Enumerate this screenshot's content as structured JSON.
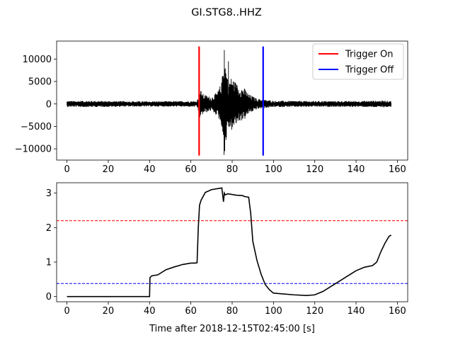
{
  "title": "GI.STG8..HHZ",
  "chart_data": [
    {
      "type": "line",
      "xlim": [
        -5,
        165
      ],
      "ylim": [
        -12500,
        14000
      ],
      "xticks": [
        0,
        20,
        40,
        60,
        80,
        100,
        120,
        140,
        160
      ],
      "yticks": [
        -10000,
        -5000,
        0,
        5000,
        10000
      ],
      "xtick_labels": [
        "0",
        "20",
        "40",
        "60",
        "80",
        "100",
        "120",
        "140",
        "160"
      ],
      "ytick_labels": [
        "−10000",
        "−5000",
        "0",
        "5000",
        "10000"
      ],
      "grid": false,
      "legend_position": "top-right",
      "waveform": {
        "color": "#000000",
        "envelope": [
          {
            "t": 0,
            "amp": 650
          },
          {
            "t": 10,
            "amp": 700
          },
          {
            "t": 20,
            "amp": 650
          },
          {
            "t": 30,
            "amp": 600
          },
          {
            "t": 40,
            "amp": 600
          },
          {
            "t": 50,
            "amp": 600
          },
          {
            "t": 63,
            "amp": 650
          },
          {
            "t": 64.5,
            "amp": 3300
          },
          {
            "t": 66,
            "amp": 2200
          },
          {
            "t": 70,
            "amp": 1500
          },
          {
            "t": 73,
            "amp": 2800
          },
          {
            "t": 75,
            "amp": 5000
          },
          {
            "t": 76,
            "amp": 11800
          },
          {
            "t": 77,
            "amp": 8500
          },
          {
            "t": 78,
            "amp": 5500
          },
          {
            "t": 80,
            "amp": 6000
          },
          {
            "t": 83,
            "amp": 4000
          },
          {
            "t": 86,
            "amp": 3500
          },
          {
            "t": 88,
            "amp": 2200
          },
          {
            "t": 92,
            "amp": 1200
          },
          {
            "t": 95,
            "amp": 1000
          },
          {
            "t": 100,
            "amp": 700
          },
          {
            "t": 120,
            "amp": 650
          },
          {
            "t": 140,
            "amp": 650
          },
          {
            "t": 153,
            "amp": 750
          },
          {
            "t": 157,
            "amp": 650
          }
        ],
        "extremes": [
          {
            "t": 76.2,
            "value": 12000
          },
          {
            "t": 76.4,
            "value": -10500
          },
          {
            "t": 77.0,
            "value": -8000
          },
          {
            "t": 78.2,
            "value": 9500
          }
        ]
      },
      "series": [
        {
          "name": "Trigger On",
          "color": "#ff0000",
          "x": [
            64,
            64
          ],
          "y": [
            -11500,
            12800
          ]
        },
        {
          "name": "Trigger Off",
          "color": "#0000ff",
          "x": [
            95,
            95
          ],
          "y": [
            -11500,
            12800
          ]
        }
      ]
    },
    {
      "type": "line",
      "xlim": [
        -5,
        165
      ],
      "ylim": [
        -0.15,
        3.3
      ],
      "xticks": [
        0,
        20,
        40,
        60,
        80,
        100,
        120,
        140,
        160
      ],
      "yticks": [
        0,
        1,
        2,
        3
      ],
      "xtick_labels": [
        "0",
        "20",
        "40",
        "60",
        "80",
        "100",
        "120",
        "140",
        "160"
      ],
      "ytick_labels": [
        "0",
        "1",
        "2",
        "3"
      ],
      "xlabel": "Time after 2018-12-15T02:45:00 [s]",
      "grid": false,
      "series": [
        {
          "color": "#000000",
          "x": [
            0,
            40,
            40.2,
            41,
            44,
            48,
            52,
            56,
            60,
            62,
            63,
            63.6,
            64.2,
            65,
            67,
            70,
            75,
            75.4,
            75.8,
            76.2,
            76.6,
            78,
            82,
            85,
            86,
            88,
            89,
            90,
            92,
            94,
            96,
            98,
            100,
            110,
            116,
            120,
            124,
            128,
            132,
            136,
            140,
            144,
            148,
            150,
            152,
            154,
            156,
            157
          ],
          "y": [
            0,
            0,
            0.55,
            0.6,
            0.63,
            0.78,
            0.86,
            0.93,
            0.97,
            0.97,
            0.98,
            2.0,
            2.65,
            2.8,
            3.02,
            3.1,
            3.15,
            2.95,
            2.75,
            3.0,
            2.95,
            2.98,
            2.94,
            2.93,
            2.9,
            2.88,
            2.4,
            1.6,
            1.05,
            0.65,
            0.35,
            0.2,
            0.1,
            0.05,
            0.03,
            0.05,
            0.15,
            0.3,
            0.45,
            0.6,
            0.75,
            0.85,
            0.9,
            1.0,
            1.3,
            1.55,
            1.75,
            1.78
          ]
        }
      ],
      "thresholds": [
        {
          "value": 2.2,
          "color": "#ff0000",
          "style": "dashed"
        },
        {
          "value": 0.38,
          "color": "#0000ff",
          "style": "dashed"
        }
      ]
    }
  ]
}
